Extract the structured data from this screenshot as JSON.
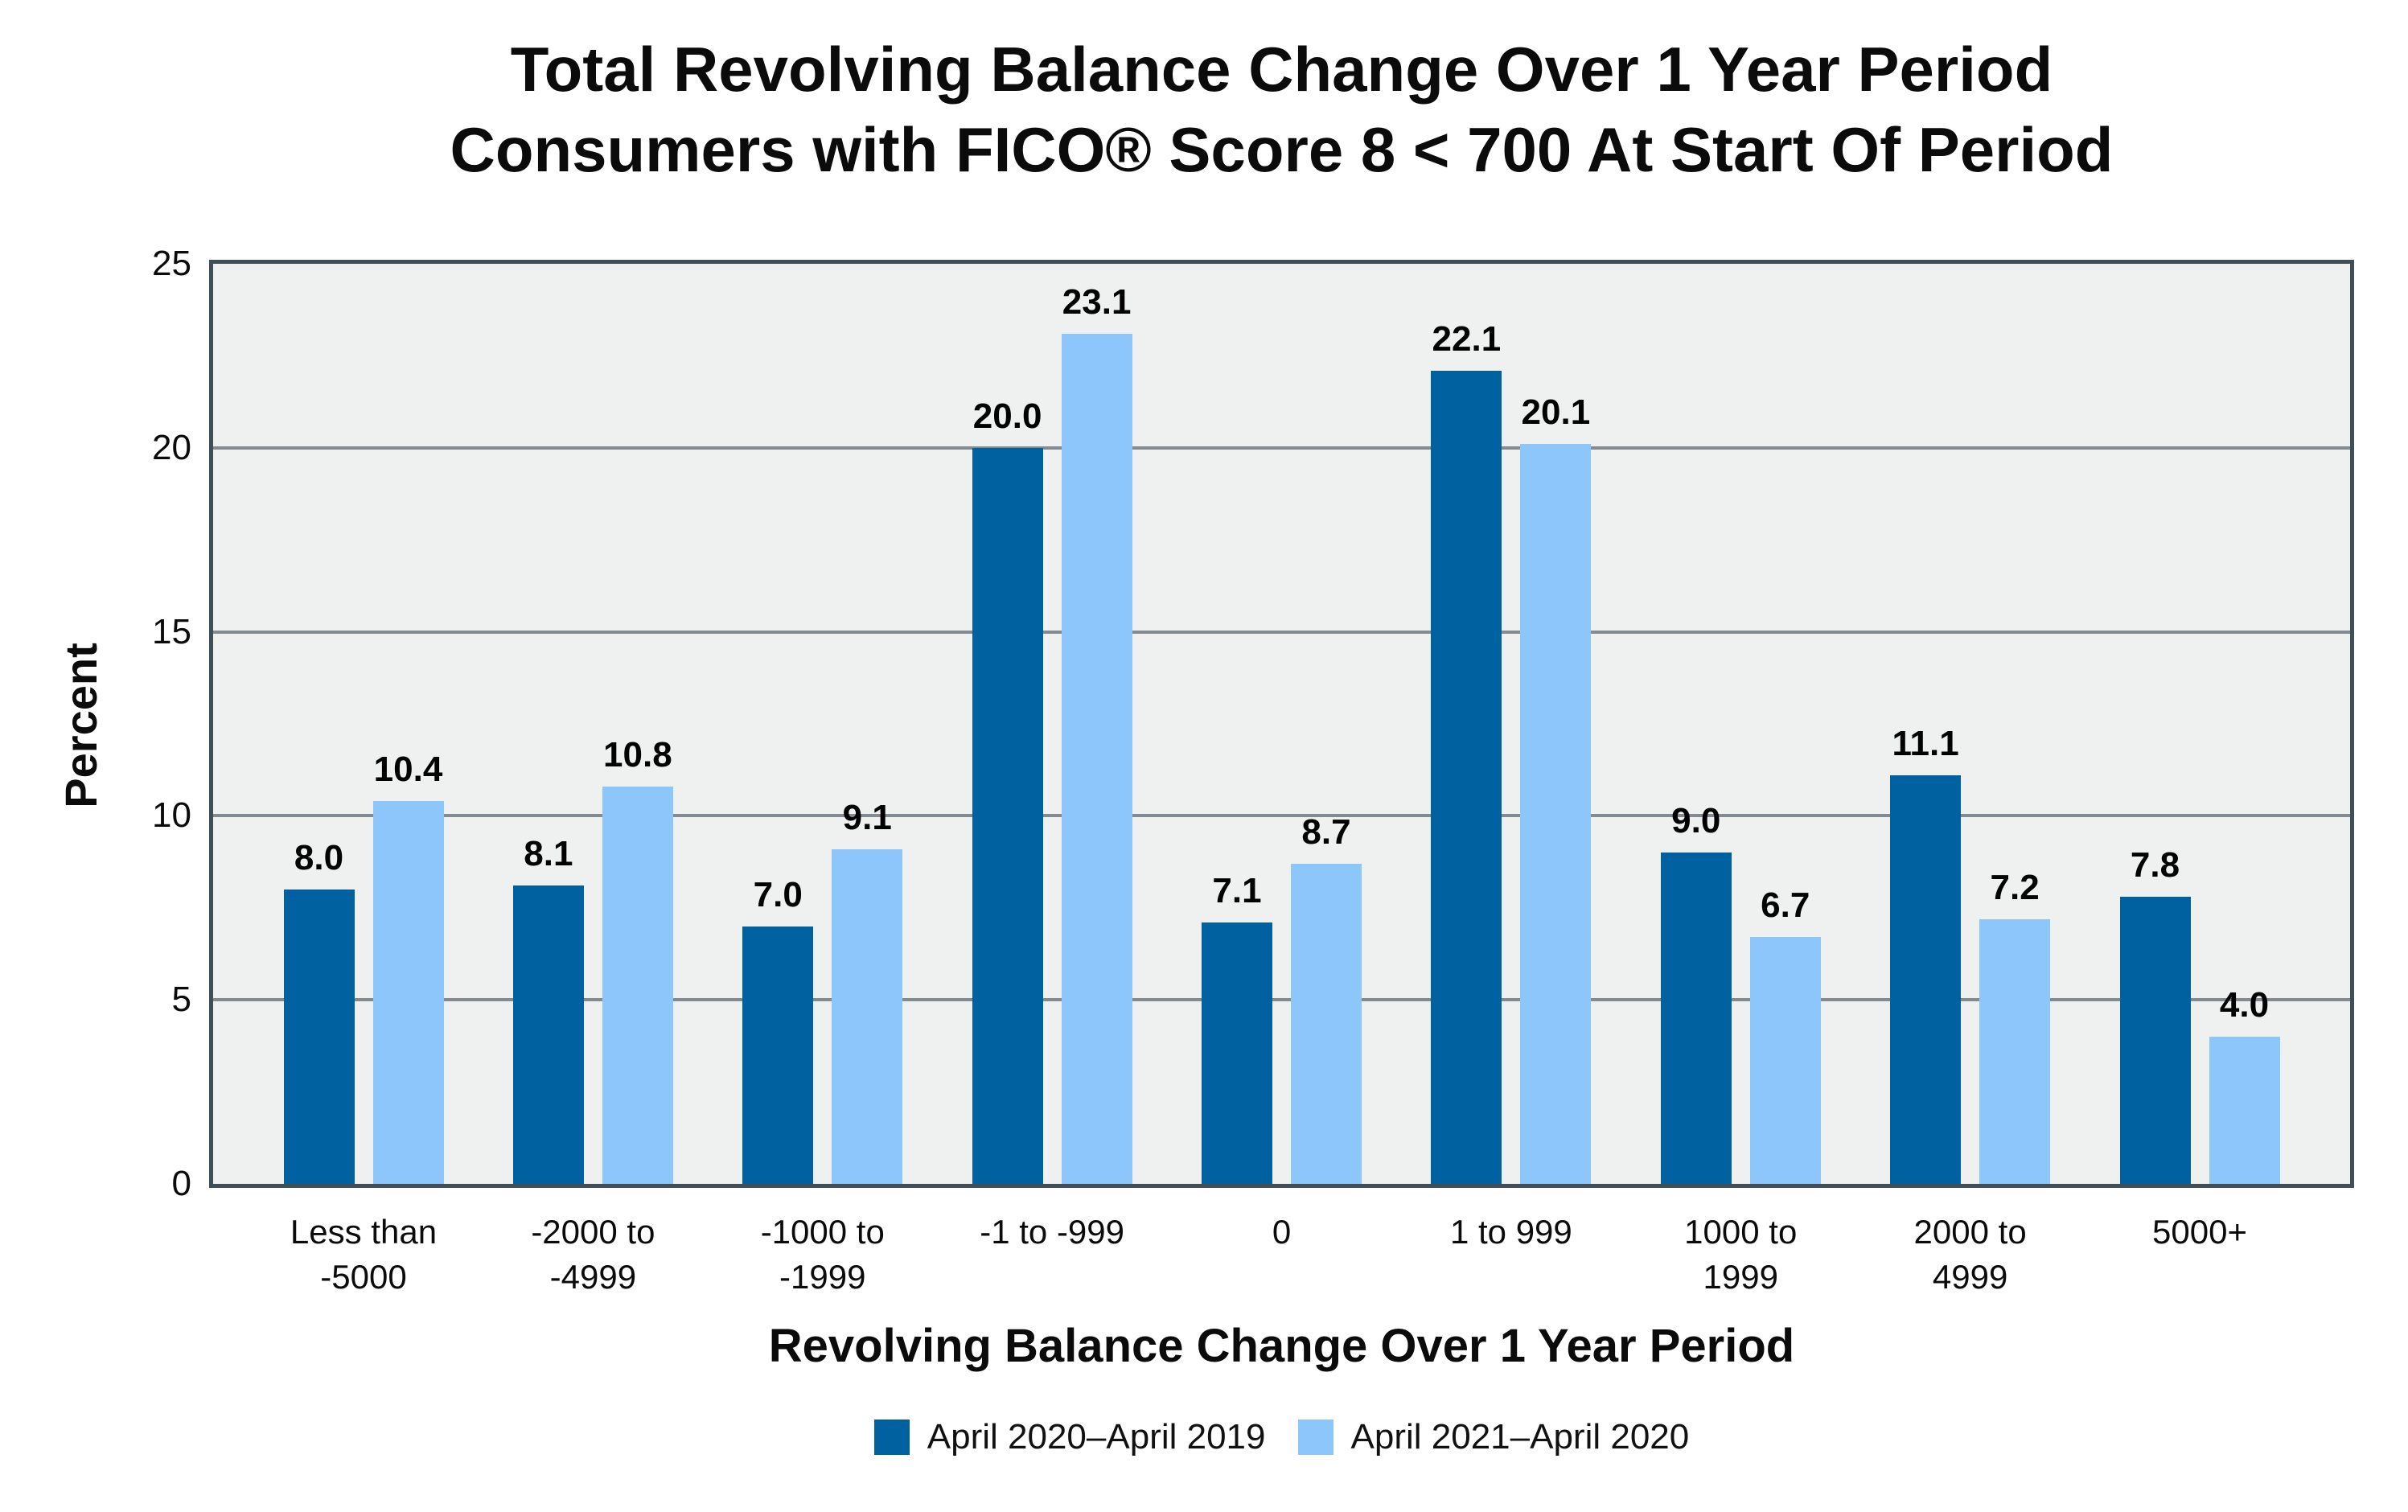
{
  "title": {
    "line1": "Total Revolving Balance Change Over 1 Year Period",
    "line2": "Consumers with FICO® Score 8 < 700 At Start Of Period"
  },
  "chart_data": {
    "type": "bar",
    "categories": [
      "Less than -5000",
      "-2000 to -4999",
      "-1000 to -1999",
      "-1 to -999",
      "0",
      "1 to 999",
      "1000 to 1999",
      "2000 to 4999",
      "5000+"
    ],
    "series": [
      {
        "name": "April 2020–April 2019",
        "color": "#0061A0",
        "values": [
          8.0,
          8.1,
          7.0,
          20.0,
          7.1,
          22.1,
          9.0,
          11.1,
          7.8
        ]
      },
      {
        "name": "April 2021–April 2020",
        "color": "#8CC6FB",
        "values": [
          10.4,
          10.8,
          9.1,
          23.1,
          8.7,
          20.1,
          6.7,
          7.2,
          4.0
        ]
      }
    ],
    "xlabel": "Revolving Balance Change Over 1 Year Period",
    "ylabel": "Percent",
    "ylim": [
      0,
      25
    ],
    "yticks": [
      0,
      5,
      10,
      15,
      20,
      25
    ],
    "grid": true,
    "legend_position": "bottom",
    "value_label_decimals": 1
  },
  "colors": {
    "background": "#FFFFFF",
    "plot_background": "#EEF1F0",
    "frame": "#3F4E57",
    "gridline": "#848B90",
    "text": "#0B0B0B"
  }
}
